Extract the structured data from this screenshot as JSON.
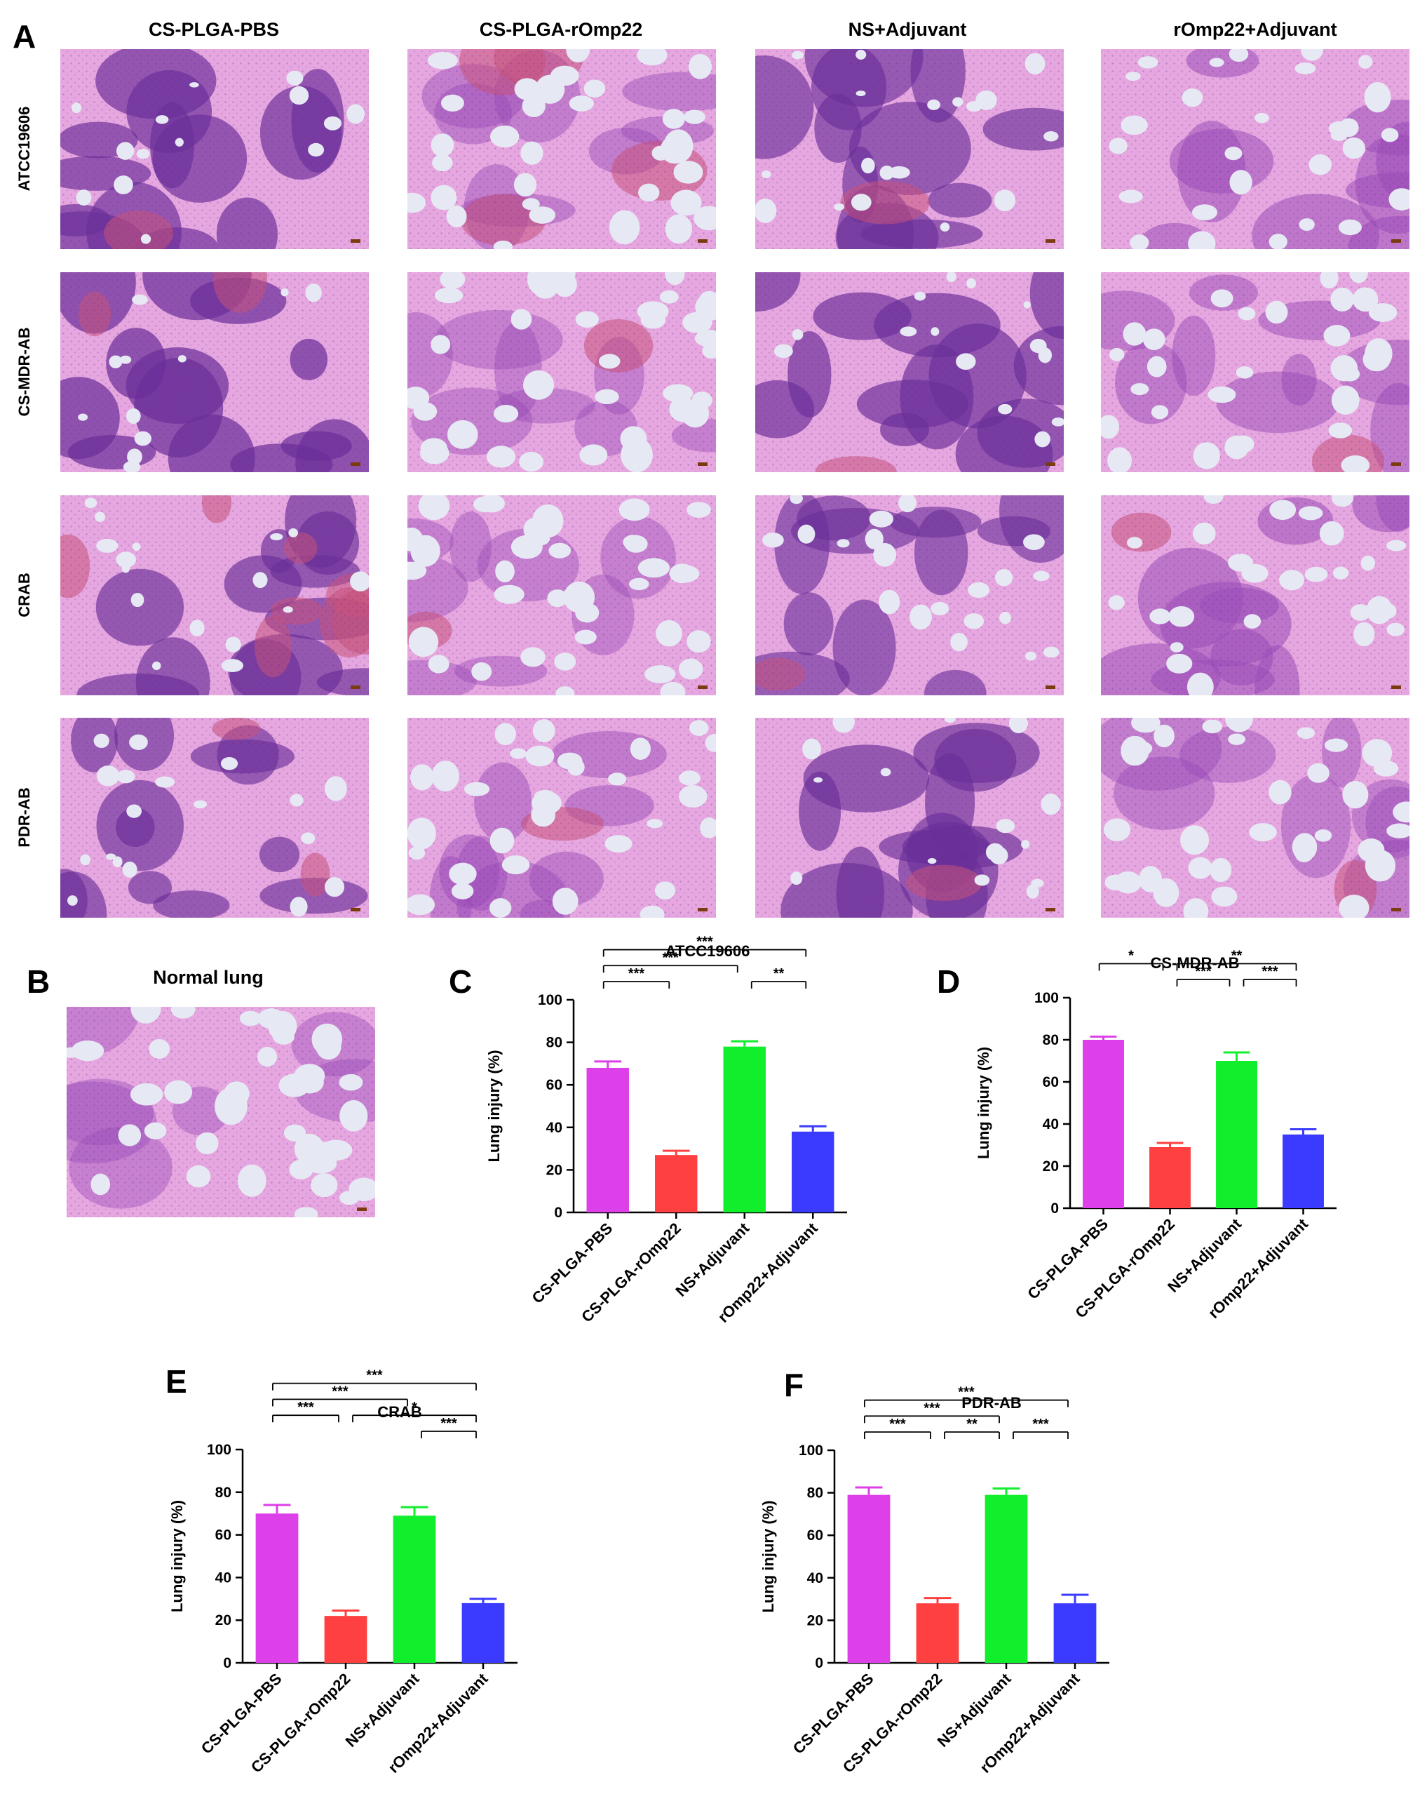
{
  "panel_a": {
    "letter": "A",
    "columns": [
      "CS-PLGA-PBS",
      "CS-PLGA-rOmp22",
      "NS+Adjuvant",
      "rOmp22+Adjuvant"
    ],
    "rows": [
      "ATCC19606",
      "CS-MDR-AB",
      "CRAB",
      "PDR-AB"
    ],
    "stain_colors": {
      "pink": "#e6a6df",
      "purple": "#9a4cb8",
      "dark_purple": "#6b2f99",
      "red": "#c7527a",
      "lumen": "#e6e9f3"
    },
    "tile_density": [
      [
        0.85,
        0.35,
        0.75,
        0.5
      ],
      [
        0.9,
        0.3,
        0.85,
        0.45
      ],
      [
        0.8,
        0.3,
        0.7,
        0.55
      ],
      [
        0.75,
        0.4,
        0.8,
        0.35
      ]
    ],
    "tile_red": [
      [
        0.05,
        0.35,
        0.05,
        0.03
      ],
      [
        0.15,
        0.1,
        0.1,
        0.05
      ],
      [
        0.7,
        0.1,
        0.1,
        0.05
      ],
      [
        0.2,
        0.1,
        0.1,
        0.1
      ]
    ]
  },
  "panel_b": {
    "letter": "B",
    "title": "Normal lung",
    "density": 0.25
  },
  "chart_data": [
    {
      "letter": "C",
      "type": "bar",
      "title": "ATCC19606",
      "xlabel": "",
      "ylabel": "Lung injury (%)",
      "ylim": [
        0,
        100
      ],
      "yticks": [
        0,
        20,
        40,
        60,
        80,
        100
      ],
      "categories": [
        "CS-PLGA-PBS",
        "CS-PLGA-rOmp22",
        "NS+Adjuvant",
        "rOmp22+Adjuvant"
      ],
      "values": [
        68,
        27,
        78,
        38
      ],
      "errors": [
        3,
        2,
        2.5,
        2.5
      ],
      "colors": [
        "#dd3fe8",
        "#ff4040",
        "#10ee2c",
        "#3b3bff"
      ],
      "significance": [
        {
          "from": 0,
          "to": 1,
          "label": "***",
          "level": 1
        },
        {
          "from": 2,
          "to": 3,
          "label": "**",
          "level": 1
        },
        {
          "from": 0,
          "to": 2,
          "label": "***",
          "level": 2
        },
        {
          "from": 0,
          "to": 3,
          "label": "***",
          "level": 3
        }
      ]
    },
    {
      "letter": "D",
      "type": "bar",
      "title": "CS-MDR-AB",
      "xlabel": "",
      "ylabel": "Lung injury (%)",
      "ylim": [
        0,
        100
      ],
      "yticks": [
        0,
        20,
        40,
        60,
        80,
        100
      ],
      "categories": [
        "CS-PLGA-PBS",
        "CS-PLGA-rOmp22",
        "NS+Adjuvant",
        "rOmp22+Adjuvant"
      ],
      "values": [
        80,
        29,
        70,
        35
      ],
      "errors": [
        1.5,
        2,
        4,
        2.5
      ],
      "colors": [
        "#dd3fe8",
        "#ff4040",
        "#10ee2c",
        "#3b3bff"
      ],
      "significance": [
        {
          "from": 1,
          "to": 2,
          "label": "***",
          "level": 1
        },
        {
          "from": 2,
          "to": 3,
          "label": "***",
          "level": 1
        },
        {
          "from": 0,
          "to": 1,
          "label": "*",
          "level": 2
        },
        {
          "from": 1,
          "to": 3,
          "label": "**",
          "level": 2
        }
      ]
    },
    {
      "letter": "E",
      "type": "bar",
      "title": "CRAB",
      "xlabel": "",
      "ylabel": "Lung injury (%)",
      "ylim": [
        0,
        100
      ],
      "yticks": [
        0,
        20,
        40,
        60,
        80,
        100
      ],
      "categories": [
        "CS-PLGA-PBS",
        "CS-PLGA-rOmp22",
        "NS+Adjuvant",
        "rOmp22+Adjuvant"
      ],
      "values": [
        70,
        22,
        69,
        28
      ],
      "errors": [
        4,
        2.5,
        4,
        2
      ],
      "colors": [
        "#dd3fe8",
        "#ff4040",
        "#10ee2c",
        "#3b3bff"
      ],
      "significance": [
        {
          "from": 2,
          "to": 3,
          "label": "***",
          "level": 1
        },
        {
          "from": 0,
          "to": 1,
          "label": "***",
          "level": 2
        },
        {
          "from": 1,
          "to": 3,
          "label": "*",
          "level": 2
        },
        {
          "from": 0,
          "to": 2,
          "label": "***",
          "level": 3
        },
        {
          "from": 0,
          "to": 3,
          "label": "***",
          "level": 4
        }
      ]
    },
    {
      "letter": "F",
      "type": "bar",
      "title": "PDR-AB",
      "xlabel": "",
      "ylabel": "Lung injury (%)",
      "ylim": [
        0,
        100
      ],
      "yticks": [
        0,
        20,
        40,
        60,
        80,
        100
      ],
      "categories": [
        "CS-PLGA-PBS",
        "CS-PLGA-rOmp22",
        "NS+Adjuvant",
        "rOmp22+Adjuvant"
      ],
      "values": [
        79,
        28,
        79,
        28
      ],
      "errors": [
        3.5,
        2.5,
        3,
        4
      ],
      "colors": [
        "#dd3fe8",
        "#ff4040",
        "#10ee2c",
        "#3b3bff"
      ],
      "significance": [
        {
          "from": 0,
          "to": 1,
          "label": "***",
          "level": 1
        },
        {
          "from": 1,
          "to": 2,
          "label": "**",
          "level": 1
        },
        {
          "from": 2,
          "to": 3,
          "label": "***",
          "level": 1
        },
        {
          "from": 0,
          "to": 2,
          "label": "***",
          "level": 2
        },
        {
          "from": 0,
          "to": 3,
          "label": "***",
          "level": 3
        }
      ]
    }
  ]
}
